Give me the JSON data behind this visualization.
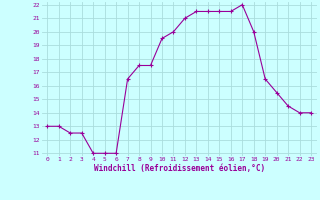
{
  "x": [
    0,
    1,
    2,
    3,
    4,
    5,
    6,
    7,
    8,
    9,
    10,
    11,
    12,
    13,
    14,
    15,
    16,
    17,
    18,
    19,
    20,
    21,
    22,
    23
  ],
  "y": [
    13,
    13,
    12.5,
    12.5,
    11,
    11,
    11,
    16.5,
    17.5,
    17.5,
    19.5,
    20,
    21,
    21.5,
    21.5,
    21.5,
    21.5,
    22,
    20,
    16.5,
    15.5,
    14.5,
    14,
    14
  ],
  "line_color": "#990099",
  "marker": "+",
  "bg_color": "#ccffff",
  "grid_color": "#aadddd",
  "xlabel": "Windchill (Refroidissement éolien,°C)",
  "xlabel_color": "#990099",
  "tick_color": "#990099",
  "ylim": [
    11,
    22
  ],
  "xlim": [
    -0.5,
    23.5
  ],
  "yticks": [
    11,
    12,
    13,
    14,
    15,
    16,
    17,
    18,
    19,
    20,
    21,
    22
  ],
  "xticks": [
    0,
    1,
    2,
    3,
    4,
    5,
    6,
    7,
    8,
    9,
    10,
    11,
    12,
    13,
    14,
    15,
    16,
    17,
    18,
    19,
    20,
    21,
    22,
    23
  ]
}
